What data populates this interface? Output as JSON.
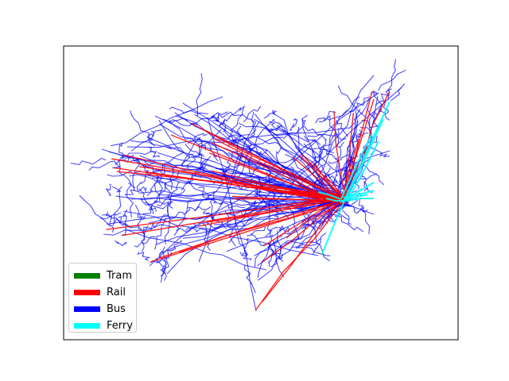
{
  "map": {
    "title": "",
    "legend": [
      {
        "label": "Tram",
        "color": "#008000"
      },
      {
        "label": "Rail",
        "color": "#ff0000"
      },
      {
        "label": "Bus",
        "color": "#0000ff"
      },
      {
        "label": "Ferry",
        "color": "#00ffff"
      }
    ],
    "frame": true,
    "ticks": "none",
    "hub_description": "Dense transit hub on the east side where rail, bus and ferry lines converge"
  }
}
